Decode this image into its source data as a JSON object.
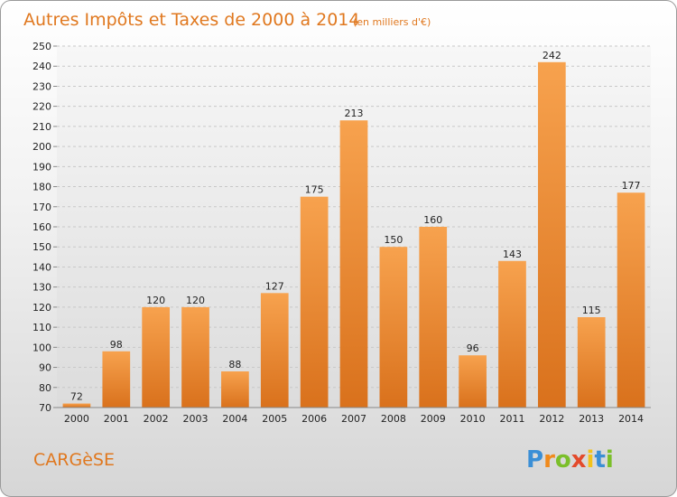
{
  "chart_data": {
    "type": "bar",
    "title": "Autres Impôts et Taxes de 2000 à 2014",
    "subtitle": "(en milliers d'€)",
    "categories": [
      "2000",
      "2001",
      "2002",
      "2003",
      "2004",
      "2005",
      "2006",
      "2007",
      "2008",
      "2009",
      "2010",
      "2011",
      "2012",
      "2013",
      "2014"
    ],
    "values": [
      72,
      98,
      120,
      120,
      88,
      127,
      175,
      213,
      150,
      160,
      96,
      143,
      242,
      115,
      177
    ],
    "ylim": [
      70,
      250
    ],
    "yticks": [
      70,
      80,
      90,
      100,
      110,
      120,
      130,
      140,
      150,
      160,
      170,
      180,
      190,
      200,
      210,
      220,
      230,
      240,
      250
    ],
    "grid": true,
    "bar_color": "#f0923a"
  },
  "footer": {
    "town": "CARGèSE",
    "logo": {
      "letters": [
        "P",
        "r",
        "o",
        "x",
        "i",
        "t",
        "i"
      ],
      "colors": [
        "#3b8fd6",
        "#f08a1c",
        "#7bbf2a",
        "#e34a2b",
        "#f2c21b",
        "#3b8fd6",
        "#7bbf2a"
      ]
    }
  }
}
